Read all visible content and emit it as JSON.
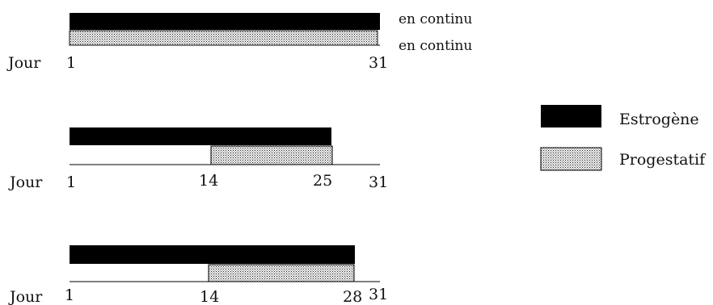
{
  "colors": {
    "estrogen": "#000000",
    "progestin_dot": "#222222",
    "progestin_bg": "#f2f2f2",
    "axis": "#000000"
  },
  "legend": {
    "estrogen": "Estrogène",
    "progestin": "Progestatif"
  },
  "schemes": [
    {
      "day_label": "Jour",
      "ticks": [
        "1",
        "31"
      ],
      "estrogen": {
        "start": 1,
        "end": 31,
        "note": "en continu"
      },
      "progestin": {
        "start": 1,
        "end": 31,
        "note": "en continu"
      }
    },
    {
      "day_label": "Jour",
      "ticks": [
        "1",
        "14",
        "25",
        "31"
      ],
      "estrogen": {
        "start": 1,
        "end": 25
      },
      "progestin": {
        "start": 14,
        "end": 25
      }
    },
    {
      "day_label": "Jour",
      "ticks": [
        "1",
        "14",
        "28",
        "31"
      ],
      "estrogen": {
        "start": 1,
        "end": 28
      },
      "progestin": {
        "start": 14,
        "end": 28
      }
    }
  ]
}
